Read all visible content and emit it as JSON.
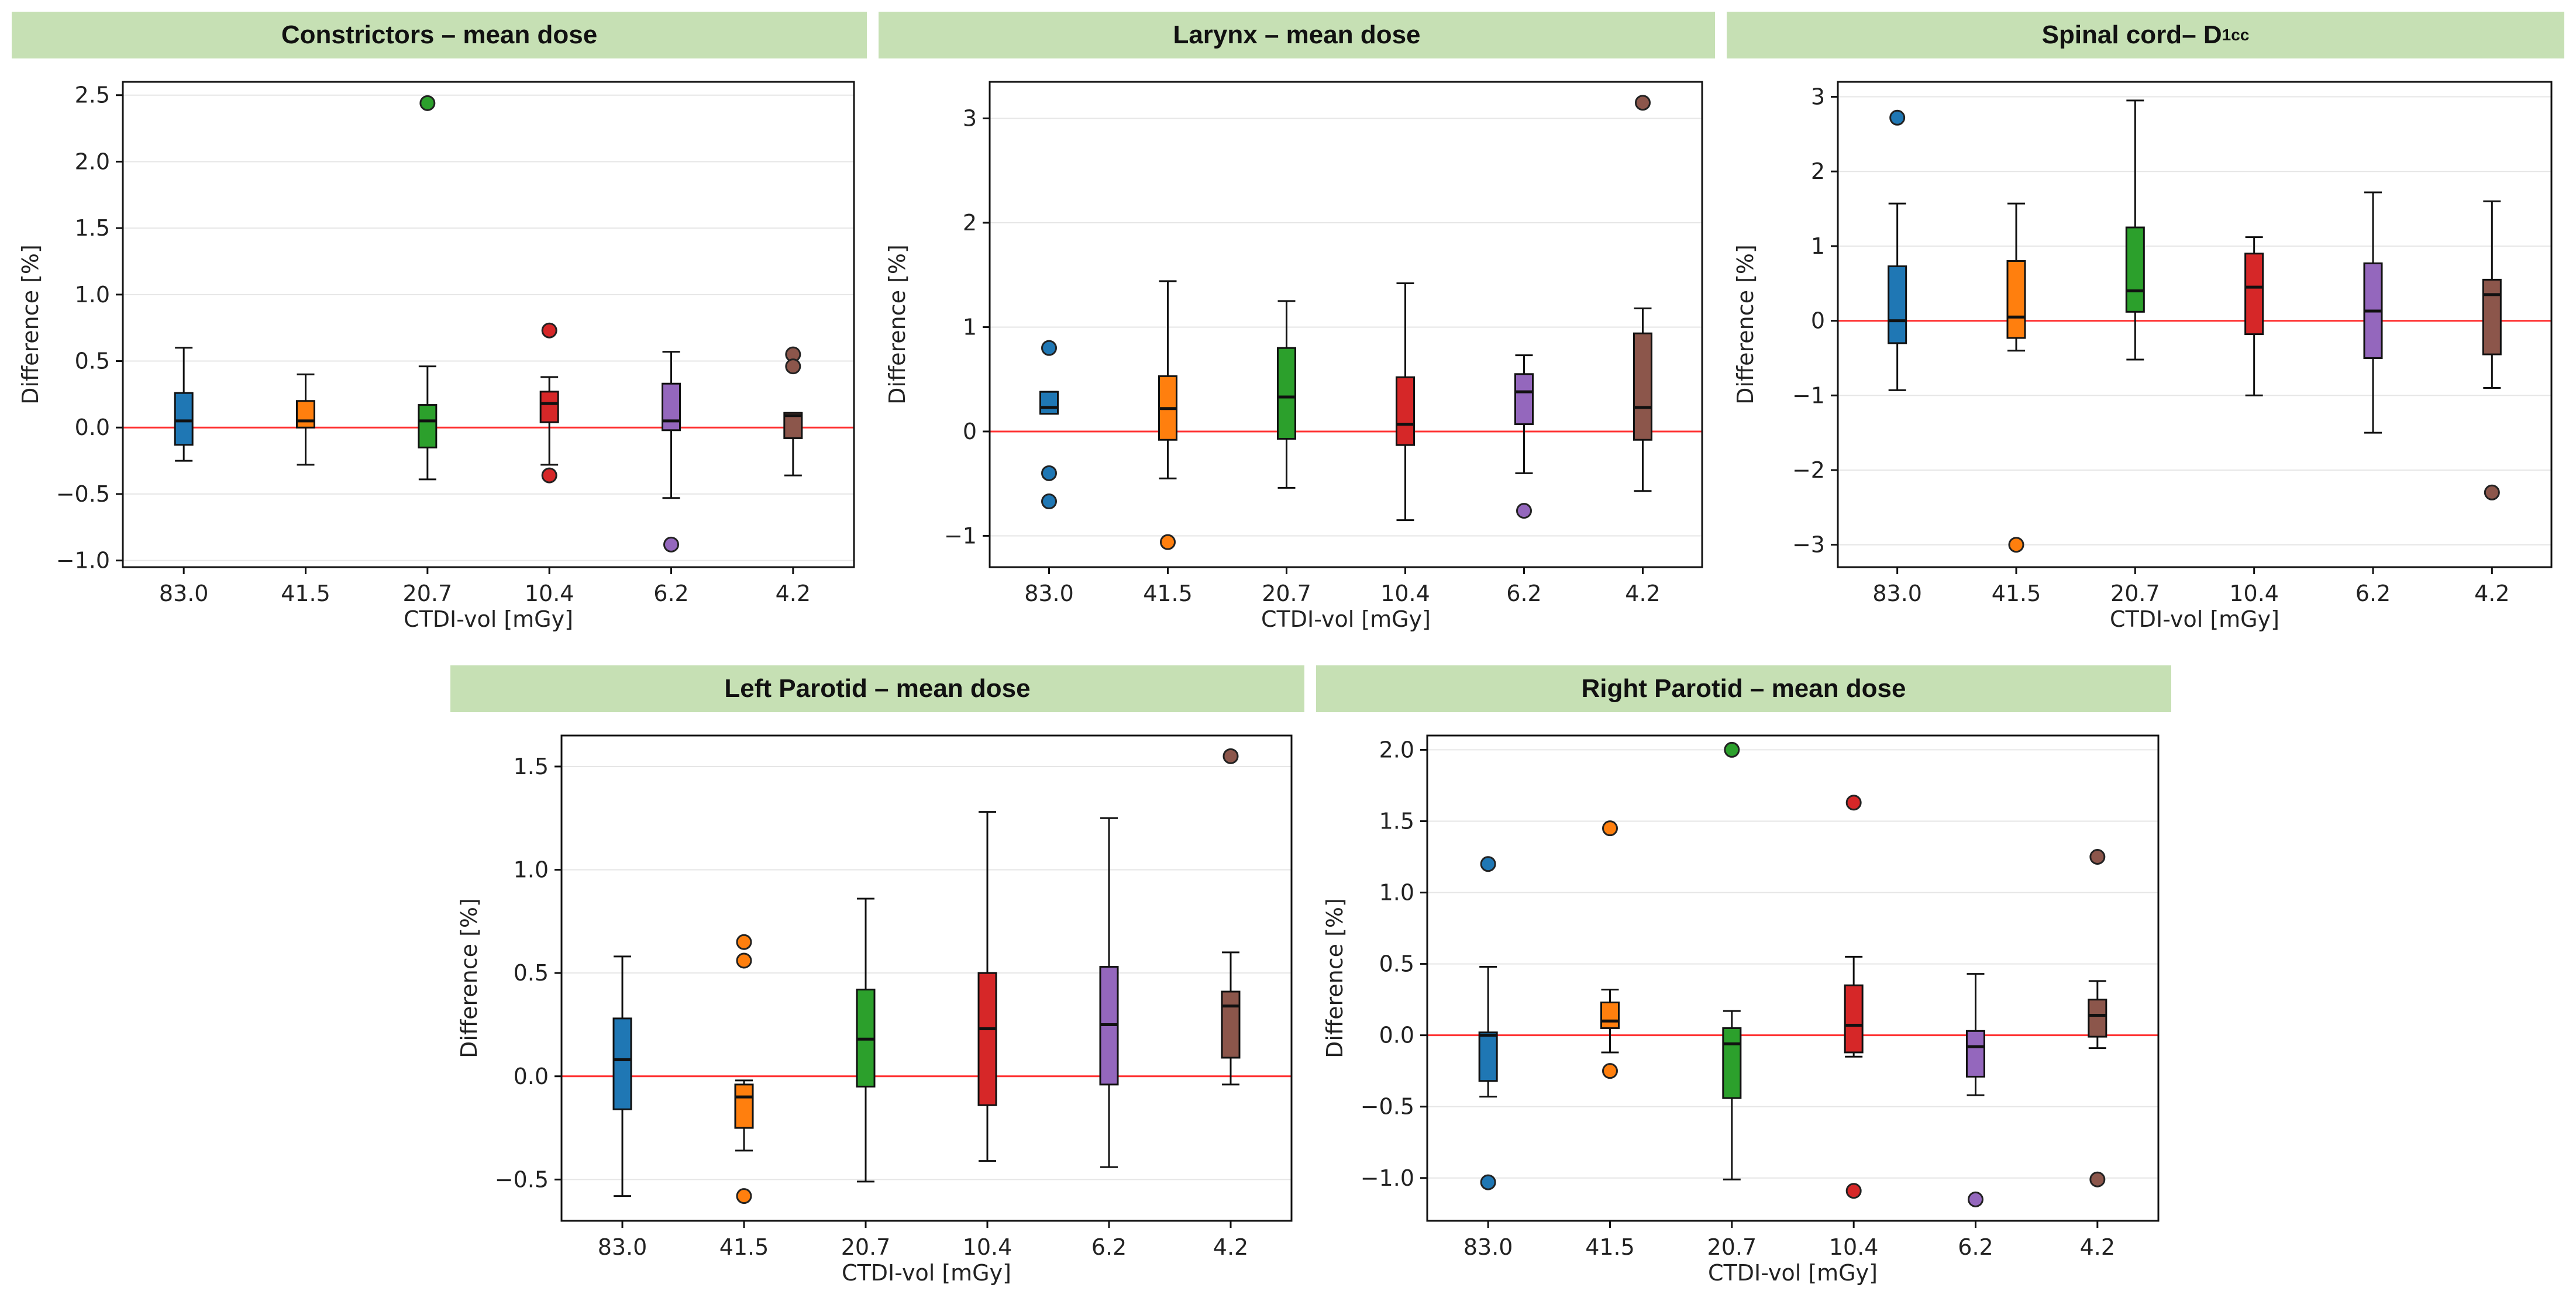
{
  "colors": [
    "#1f77b4",
    "#ff7f0e",
    "#2ca02c",
    "#d62728",
    "#9467bd",
    "#8c564b"
  ],
  "zero_line_color": "#ff3333",
  "chart_data": [
    {
      "type": "box",
      "title": "Constrictors – mean dose",
      "xlabel": "CTDI-vol [mGy]",
      "ylabel": "Difference [%]",
      "categories": [
        "83.0",
        "41.5",
        "20.7",
        "10.4",
        "6.2",
        "4.2"
      ],
      "ylim": [
        -1.05,
        2.6
      ],
      "yticks": [
        -1.0,
        -0.5,
        0.0,
        0.5,
        1.0,
        1.5,
        2.0,
        2.5
      ],
      "tick_decimals": 1,
      "boxes": [
        {
          "whislo": -0.25,
          "q1": -0.13,
          "med": 0.05,
          "q3": 0.26,
          "whishi": 0.6,
          "fliers": []
        },
        {
          "whislo": -0.28,
          "q1": 0.0,
          "med": 0.05,
          "q3": 0.2,
          "whishi": 0.4,
          "fliers": []
        },
        {
          "whislo": -0.39,
          "q1": -0.15,
          "med": 0.05,
          "q3": 0.17,
          "whishi": 0.46,
          "fliers": [
            2.44
          ]
        },
        {
          "whislo": -0.28,
          "q1": 0.04,
          "med": 0.18,
          "q3": 0.27,
          "whishi": 0.38,
          "fliers": [
            0.73,
            -0.36
          ]
        },
        {
          "whislo": -0.53,
          "q1": -0.02,
          "med": 0.05,
          "q3": 0.33,
          "whishi": 0.57,
          "fliers": [
            -0.88
          ]
        },
        {
          "whislo": -0.36,
          "q1": -0.08,
          "med": 0.09,
          "q3": 0.11,
          "whishi": 0.11,
          "fliers": [
            0.55,
            0.46
          ]
        }
      ]
    },
    {
      "type": "box",
      "title": "Larynx – mean dose",
      "xlabel": "CTDI-vol [mGy]",
      "ylabel": "Difference [%]",
      "categories": [
        "83.0",
        "41.5",
        "20.7",
        "10.4",
        "6.2",
        "4.2"
      ],
      "ylim": [
        -1.3,
        3.35
      ],
      "yticks": [
        -1,
        0,
        1,
        2,
        3
      ],
      "tick_decimals": 0,
      "boxes": [
        {
          "whislo": 0.17,
          "q1": 0.17,
          "med": 0.23,
          "q3": 0.38,
          "whishi": 0.38,
          "fliers": [
            0.8,
            -0.4,
            -0.67
          ]
        },
        {
          "whislo": -0.45,
          "q1": -0.08,
          "med": 0.22,
          "q3": 0.53,
          "whishi": 1.44,
          "fliers": [
            -1.06
          ]
        },
        {
          "whislo": -0.54,
          "q1": -0.07,
          "med": 0.33,
          "q3": 0.8,
          "whishi": 1.25,
          "fliers": []
        },
        {
          "whislo": -0.85,
          "q1": -0.13,
          "med": 0.07,
          "q3": 0.52,
          "whishi": 1.42,
          "fliers": []
        },
        {
          "whislo": -0.4,
          "q1": 0.07,
          "med": 0.38,
          "q3": 0.55,
          "whishi": 0.73,
          "fliers": [
            -0.76
          ]
        },
        {
          "whislo": -0.57,
          "q1": -0.08,
          "med": 0.23,
          "q3": 0.94,
          "whishi": 1.18,
          "fliers": [
            3.15
          ]
        }
      ]
    },
    {
      "type": "box",
      "title": "Spinal cord– D",
      "title_sub": "1cc",
      "xlabel": "CTDI-vol [mGy]",
      "ylabel": "Difference [%]",
      "categories": [
        "83.0",
        "41.5",
        "20.7",
        "10.4",
        "6.2",
        "4.2"
      ],
      "ylim": [
        -3.3,
        3.2
      ],
      "yticks": [
        -3,
        -2,
        -1,
        0,
        1,
        2,
        3
      ],
      "tick_decimals": 0,
      "boxes": [
        {
          "whislo": -0.93,
          "q1": -0.3,
          "med": 0.0,
          "q3": 0.73,
          "whishi": 1.57,
          "fliers": [
            2.72
          ]
        },
        {
          "whislo": -0.4,
          "q1": -0.23,
          "med": 0.05,
          "q3": 0.8,
          "whishi": 1.57,
          "fliers": [
            -3.0
          ]
        },
        {
          "whislo": -0.52,
          "q1": 0.12,
          "med": 0.4,
          "q3": 1.25,
          "whishi": 2.95,
          "fliers": []
        },
        {
          "whislo": -1.0,
          "q1": -0.18,
          "med": 0.45,
          "q3": 0.9,
          "whishi": 1.12,
          "fliers": []
        },
        {
          "whislo": -1.5,
          "q1": -0.5,
          "med": 0.13,
          "q3": 0.77,
          "whishi": 1.72,
          "fliers": []
        },
        {
          "whislo": -0.9,
          "q1": -0.45,
          "med": 0.35,
          "q3": 0.55,
          "whishi": 1.6,
          "fliers": [
            -2.3
          ]
        }
      ]
    },
    {
      "type": "box",
      "title": "Left Parotid – mean dose",
      "xlabel": "CTDI-vol [mGy]",
      "ylabel": "Difference [%]",
      "categories": [
        "83.0",
        "41.5",
        "20.7",
        "10.4",
        "6.2",
        "4.2"
      ],
      "ylim": [
        -0.7,
        1.65
      ],
      "yticks": [
        -0.5,
        0.0,
        0.5,
        1.0,
        1.5
      ],
      "tick_decimals": 1,
      "boxes": [
        {
          "whislo": -0.58,
          "q1": -0.16,
          "med": 0.08,
          "q3": 0.28,
          "whishi": 0.58,
          "fliers": []
        },
        {
          "whislo": -0.36,
          "q1": -0.25,
          "med": -0.1,
          "q3": -0.04,
          "whishi": -0.02,
          "fliers": [
            0.65,
            0.56,
            -0.58
          ]
        },
        {
          "whislo": -0.51,
          "q1": -0.05,
          "med": 0.18,
          "q3": 0.42,
          "whishi": 0.86,
          "fliers": []
        },
        {
          "whislo": -0.41,
          "q1": -0.14,
          "med": 0.23,
          "q3": 0.5,
          "whishi": 1.28,
          "fliers": []
        },
        {
          "whislo": -0.44,
          "q1": -0.04,
          "med": 0.25,
          "q3": 0.53,
          "whishi": 1.25,
          "fliers": []
        },
        {
          "whislo": -0.04,
          "q1": 0.09,
          "med": 0.34,
          "q3": 0.41,
          "whishi": 0.6,
          "fliers": [
            1.55
          ]
        }
      ]
    },
    {
      "type": "box",
      "title": "Right Parotid – mean dose",
      "xlabel": "CTDI-vol [mGy]",
      "ylabel": "Difference [%]",
      "categories": [
        "83.0",
        "41.5",
        "20.7",
        "10.4",
        "6.2",
        "4.2"
      ],
      "ylim": [
        -1.3,
        2.1
      ],
      "yticks": [
        -1.0,
        -0.5,
        0.0,
        0.5,
        1.0,
        1.5,
        2.0
      ],
      "tick_decimals": 1,
      "boxes": [
        {
          "whislo": -0.43,
          "q1": -0.32,
          "med": 0.0,
          "q3": 0.02,
          "whishi": 0.48,
          "fliers": [
            1.2,
            -1.03
          ]
        },
        {
          "whislo": -0.12,
          "q1": 0.05,
          "med": 0.1,
          "q3": 0.23,
          "whishi": 0.32,
          "fliers": [
            1.45,
            -0.25
          ]
        },
        {
          "whislo": -1.01,
          "q1": -0.44,
          "med": -0.06,
          "q3": 0.05,
          "whishi": 0.17,
          "fliers": [
            2.0
          ]
        },
        {
          "whislo": -0.15,
          "q1": -0.12,
          "med": 0.07,
          "q3": 0.35,
          "whishi": 0.55,
          "fliers": [
            1.63,
            -1.09
          ]
        },
        {
          "whislo": -0.42,
          "q1": -0.29,
          "med": -0.08,
          "q3": 0.03,
          "whishi": 0.43,
          "fliers": [
            -1.15
          ]
        },
        {
          "whislo": -0.09,
          "q1": -0.01,
          "med": 0.14,
          "q3": 0.25,
          "whishi": 0.38,
          "fliers": [
            1.25,
            -1.01
          ]
        }
      ]
    }
  ]
}
